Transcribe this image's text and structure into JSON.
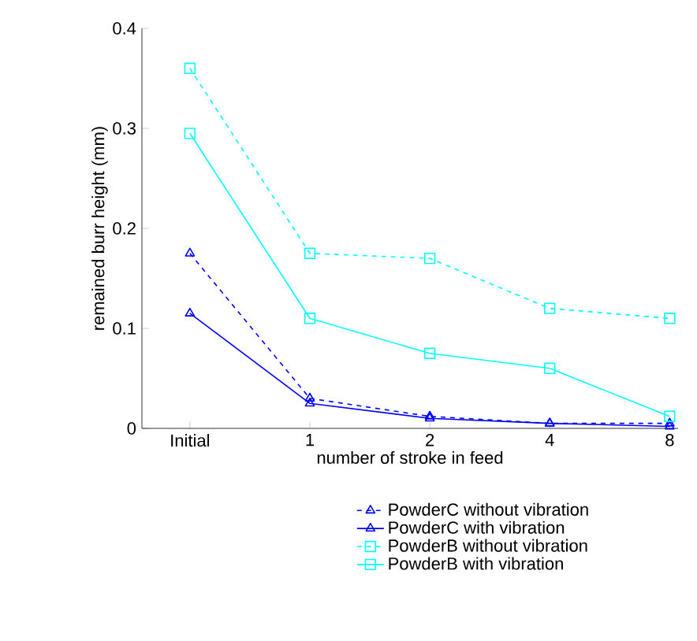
{
  "chart_data": {
    "type": "line",
    "xlabel": "number of stroke in feed",
    "ylabel": "remained burr height (mm)",
    "categories": [
      "Initial",
      "1",
      "2",
      "4",
      "8"
    ],
    "ylim": [
      0,
      0.4
    ],
    "yticks": [
      0,
      0.1,
      0.2,
      0.3,
      0.4
    ],
    "grid": false,
    "legend": "bottom",
    "series": [
      {
        "name": "PowderC without vibration",
        "color": "#0000ff",
        "marker": "triangle",
        "line_style": "dashed",
        "values": [
          0.175,
          0.03,
          0.012,
          0.005,
          0.005
        ]
      },
      {
        "name": "PowderC with vibration",
        "color": "#0000ff",
        "marker": "triangle",
        "line_style": "solid",
        "values": [
          0.115,
          0.025,
          0.01,
          0.005,
          0.002
        ]
      },
      {
        "name": "PowderB without vibration",
        "color": "#00ffff",
        "marker": "square",
        "line_style": "dashed",
        "values": [
          0.36,
          0.175,
          0.17,
          0.12,
          0.11
        ]
      },
      {
        "name": "PowderB with vibration",
        "color": "#00ffff",
        "marker": "square",
        "line_style": "solid",
        "values": [
          0.295,
          0.11,
          0.075,
          0.06,
          0.012
        ]
      }
    ]
  }
}
